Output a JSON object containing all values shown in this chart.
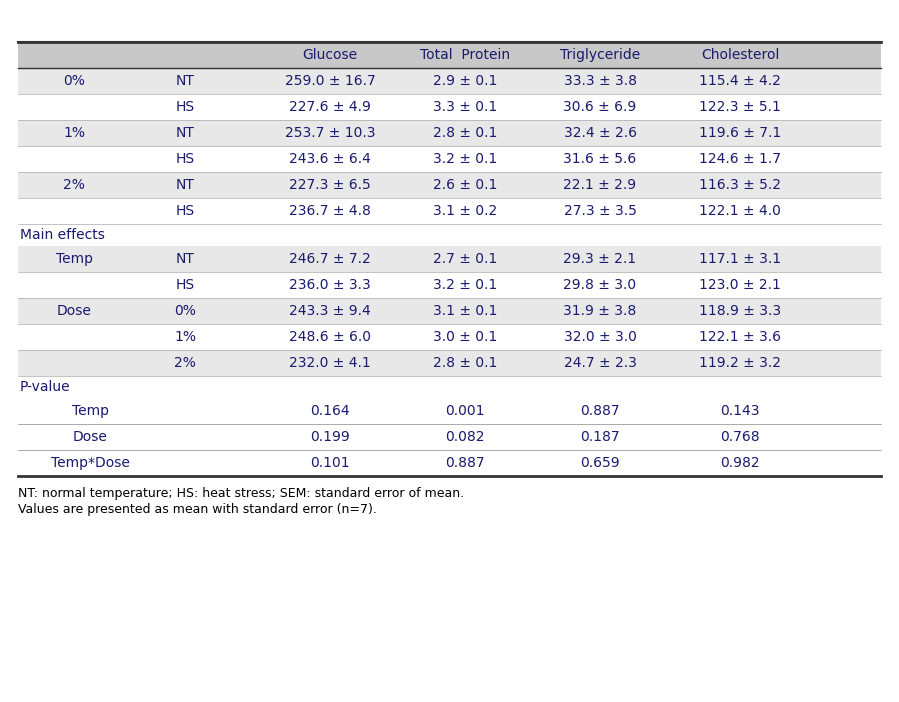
{
  "header": [
    "",
    "",
    "Glucose",
    "Total  Protein",
    "Triglyceride",
    "Cholesterol"
  ],
  "rows": [
    {
      "type": "data",
      "col0": "0%",
      "col1": "NT",
      "col2": "259.0 ± 16.7",
      "col3": "2.9 ± 0.1",
      "col4": "33.3 ± 3.8",
      "col5": "115.4 ± 4.2",
      "shaded": true
    },
    {
      "type": "data",
      "col0": "",
      "col1": "HS",
      "col2": "227.6 ± 4.9",
      "col3": "3.3 ± 0.1",
      "col4": "30.6 ± 6.9",
      "col5": "122.3 ± 5.1",
      "shaded": false
    },
    {
      "type": "data",
      "col0": "1%",
      "col1": "NT",
      "col2": "253.7 ± 10.3",
      "col3": "2.8 ± 0.1",
      "col4": "32.4 ± 2.6",
      "col5": "119.6 ± 7.1",
      "shaded": true
    },
    {
      "type": "data",
      "col0": "",
      "col1": "HS",
      "col2": "243.6 ± 6.4",
      "col3": "3.2 ± 0.1",
      "col4": "31.6 ± 5.6",
      "col5": "124.6 ± 1.7",
      "shaded": false
    },
    {
      "type": "data",
      "col0": "2%",
      "col1": "NT",
      "col2": "227.3 ± 6.5",
      "col3": "2.6 ± 0.1",
      "col4": "22.1 ± 2.9",
      "col5": "116.3 ± 5.2",
      "shaded": true
    },
    {
      "type": "data",
      "col0": "",
      "col1": "HS",
      "col2": "236.7 ± 4.8",
      "col3": "3.1 ± 0.2",
      "col4": "27.3 ± 3.5",
      "col5": "122.1 ± 4.0",
      "shaded": false
    },
    {
      "type": "section",
      "col0": "Main effects",
      "col1": "",
      "col2": "",
      "col3": "",
      "col4": "",
      "col5": "",
      "shaded": false
    },
    {
      "type": "data",
      "col0": "Temp",
      "col1": "NT",
      "col2": "246.7 ± 7.2",
      "col3": "2.7 ± 0.1",
      "col4": "29.3 ± 2.1",
      "col5": "117.1 ± 3.1",
      "shaded": true
    },
    {
      "type": "data",
      "col0": "",
      "col1": "HS",
      "col2": "236.0 ± 3.3",
      "col3": "3.2 ± 0.1",
      "col4": "29.8 ± 3.0",
      "col5": "123.0 ± 2.1",
      "shaded": false
    },
    {
      "type": "data",
      "col0": "Dose",
      "col1": "0%",
      "col2": "243.3 ± 9.4",
      "col3": "3.1 ± 0.1",
      "col4": "31.9 ± 3.8",
      "col5": "118.9 ± 3.3",
      "shaded": true
    },
    {
      "type": "data",
      "col0": "",
      "col1": "1%",
      "col2": "248.6 ± 6.0",
      "col3": "3.0 ± 0.1",
      "col4": "32.0 ± 3.0",
      "col5": "122.1 ± 3.6",
      "shaded": false
    },
    {
      "type": "data",
      "col0": "",
      "col1": "2%",
      "col2": "232.0 ± 4.1",
      "col3": "2.8 ± 0.1",
      "col4": "24.7 ± 2.3",
      "col5": "119.2 ± 3.2",
      "shaded": true
    },
    {
      "type": "section",
      "col0": "P-value",
      "col1": "",
      "col2": "",
      "col3": "",
      "col4": "",
      "col5": "",
      "shaded": false
    },
    {
      "type": "pval",
      "col0": "Temp",
      "col1": "",
      "col2": "0.164",
      "col3": "0.001",
      "col4": "0.887",
      "col5": "0.143",
      "shaded": false
    },
    {
      "type": "pval",
      "col0": "Dose",
      "col1": "",
      "col2": "0.199",
      "col3": "0.082",
      "col4": "0.187",
      "col5": "0.768",
      "shaded": false
    },
    {
      "type": "pval",
      "col0": "Temp*Dose",
      "col1": "",
      "col2": "0.101",
      "col3": "0.887",
      "col4": "0.659",
      "col5": "0.982",
      "shaded": false
    }
  ],
  "footnote1": "NT: normal temperature; HS: heat stress; SEM: standard error of mean.",
  "footnote2": "Values are presented as mean with standard error (n=7).",
  "shaded_color": "#e8e8e8",
  "header_shaded_color": "#c8c8c8",
  "text_color": "#1a1a6e",
  "bg_color": "#ffffff"
}
